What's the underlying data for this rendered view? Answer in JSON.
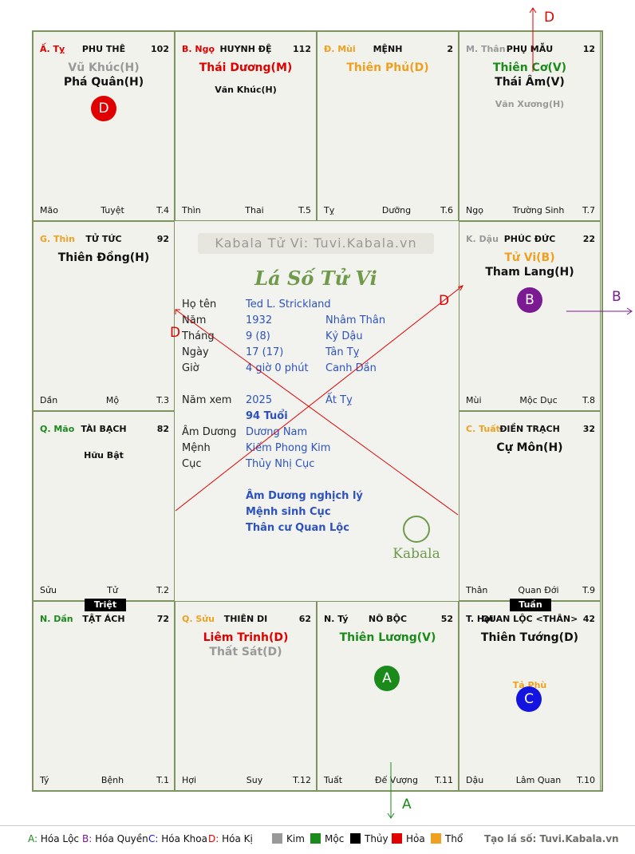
{
  "colors": {
    "fire": "#e00000",
    "wood": "#1a8a1a",
    "earth": "#f0a020",
    "metal": "#999999",
    "water": "#111111",
    "accent": "#6e9a4a",
    "blue": "#2d52c0",
    "purple": "#7b1a93"
  },
  "cells": [
    {
      "id": "ty",
      "name": "Ấ. Tỵ",
      "name_color": "fire",
      "title": "PHU THÊ",
      "num": "102",
      "stars": [
        {
          "t": "Vũ Khúc(H)",
          "c": "metal"
        },
        {
          "t": "Phá Quân(H)",
          "c": "water"
        }
      ],
      "minors": [],
      "bl": "Mão",
      "bc": "Tuyệt",
      "br": "T.4"
    },
    {
      "id": "ngo",
      "name": "B. Ngọ",
      "name_color": "fire",
      "title": "HUYNH ĐỆ",
      "num": "112",
      "stars": [
        {
          "t": "Thái Dương(M)",
          "c": "fire"
        }
      ],
      "minors": [
        {
          "t": "Văn Khúc(H)",
          "c": "water"
        }
      ],
      "bl": "Thìn",
      "bc": "Thai",
      "br": "T.5"
    },
    {
      "id": "mui",
      "name": "Đ. Mùi",
      "name_color": "earth",
      "title": "MỆNH",
      "num": "2",
      "stars": [
        {
          "t": "Thiên Phủ(D)",
          "c": "earth"
        }
      ],
      "minors": [],
      "bl": "Tỵ",
      "bc": "Dưỡng",
      "br": "T.6"
    },
    {
      "id": "than",
      "name": "M. Thân",
      "name_color": "metal",
      "title": "PHỤ MẪU",
      "num": "12",
      "stars": [
        {
          "t": "Thiên Cơ(V)",
          "c": "wood"
        },
        {
          "t": "Thái Âm(V)",
          "c": "water"
        }
      ],
      "minors": [
        {
          "t": "Văn Xương(H)",
          "c": "metal"
        }
      ],
      "bl": "Ngọ",
      "bc": "Trường Sinh",
      "br": "T.7"
    },
    {
      "id": "thin",
      "name": "G. Thìn",
      "name_color": "earth",
      "title": "TỬ TỨC",
      "num": "92",
      "stars": [
        {
          "t": "Thiên Đồng(H)",
          "c": "water"
        }
      ],
      "minors": [],
      "bl": "Dần",
      "bc": "Mộ",
      "br": "T.3"
    },
    {
      "id": "dau",
      "name": "K. Dậu",
      "name_color": "metal",
      "title": "PHÚC ĐỨC",
      "num": "22",
      "stars": [
        {
          "t": "Tử Vi(B)",
          "c": "earth"
        },
        {
          "t": "Tham Lang(H)",
          "c": "water"
        }
      ],
      "minors": [],
      "bl": "Mùi",
      "bc": "Mộc Dục",
      "br": "T.8"
    },
    {
      "id": "mao",
      "name": "Q. Mão",
      "name_color": "wood",
      "title": "TÀI BẠCH",
      "num": "82",
      "stars": [],
      "minors": [
        {
          "t": "Hữu Bật",
          "c": "water"
        }
      ],
      "bl": "Sửu",
      "bc": "Tử",
      "br": "T.2"
    },
    {
      "id": "tuat",
      "name": "C. Tuất",
      "name_color": "earth",
      "title": "ĐIỀN TRẠCH",
      "num": "32",
      "stars": [
        {
          "t": "Cự Môn(H)",
          "c": "water"
        }
      ],
      "minors": [],
      "bl": "Thân",
      "bc": "Quan Đới",
      "br": "T.9"
    },
    {
      "id": "dan",
      "name": "N. Dần",
      "name_color": "wood",
      "title": "TẬT ÁCH",
      "num": "72",
      "stars": [],
      "minors": [],
      "bl": "Tý",
      "bc": "Bệnh",
      "br": "T.1"
    },
    {
      "id": "suu",
      "name": "Q. Sửu",
      "name_color": "earth",
      "title": "THIÊN DI",
      "num": "62",
      "stars": [
        {
          "t": "Liêm Trinh(D)",
          "c": "fire"
        },
        {
          "t": "Thất Sát(D)",
          "c": "metal"
        }
      ],
      "minors": [],
      "bl": "Hợi",
      "bc": "Suy",
      "br": "T.12"
    },
    {
      "id": "tyy",
      "name": "N. Tý",
      "name_color": "water",
      "title": "NÔ BỘC",
      "num": "52",
      "stars": [
        {
          "t": "Thiên Lương(V)",
          "c": "wood"
        }
      ],
      "minors": [],
      "bl": "Tuất",
      "bc": "Đế Vượng",
      "br": "T.11"
    },
    {
      "id": "hoi",
      "name": "T. Hợi",
      "name_color": "water",
      "title": "QUAN LỘC <THÂN>",
      "num": "42",
      "stars": [
        {
          "t": "Thiên Tướng(D)",
          "c": "water"
        }
      ],
      "minors": [
        {
          "t": "Tả Phù",
          "c": "earth"
        }
      ],
      "bl": "Dậu",
      "bc": "Lâm Quan",
      "br": "T.10"
    }
  ],
  "tags": {
    "triet": "Triệt",
    "tuan": "Tuần"
  },
  "circles": {
    "d": "D",
    "b": "B",
    "a": "A",
    "c": "C"
  },
  "center": {
    "brand": "Kabala Tử Vi: Tuvi.Kabala.vn",
    "heading": "Lá Số Tử Vi",
    "rows": [
      {
        "k": "Họ tên",
        "v1": "Ted L. Strickland",
        "v2": ""
      },
      {
        "k": "Năm",
        "v1": "1932",
        "v2": "Nhâm Thân"
      },
      {
        "k": "Tháng",
        "v1": "9  (8)",
        "v2": "Kỷ Dậu"
      },
      {
        "k": "Ngày",
        "v1": "17  (17)",
        "v2": "Tân Tỵ"
      },
      {
        "k": "Giờ",
        "v1": "4 giờ 0 phút",
        "v2": "Canh Dần"
      },
      {
        "k": "Năm xem",
        "v1": "2025",
        "v2": "Ất Tỵ"
      },
      {
        "k": "",
        "v1": "94 Tuổi",
        "v2": ""
      },
      {
        "k": "Âm Dương",
        "v1": "Dương Nam",
        "v2": ""
      },
      {
        "k": "Mệnh",
        "v1": "Kiếm Phong Kim",
        "v2": ""
      },
      {
        "k": "Cục",
        "v1": "Thủy Nhị Cục",
        "v2": ""
      }
    ],
    "notes": [
      "Âm Dương nghịch lý",
      "Mệnh sinh Cục",
      "Thân cư Quan Lộc"
    ],
    "logo": "Kabala"
  },
  "arrows": {
    "d_top": "D",
    "b_right": "B",
    "a_bottom": "A",
    "d_left": "D",
    "d_right": "D"
  },
  "legend": {
    "a": "A: Hóa Lộc",
    "b": "B: Hóa Quyền",
    "c": "C: Hóa Khoa",
    "d": "D: Hóa Kị",
    "kim": "Kim",
    "moc": "Mộc",
    "thuy": "Thủy",
    "hoa": "Hỏa",
    "tho": "Thổ",
    "site": "Tạo lá số: Tuvi.Kabala.vn"
  }
}
